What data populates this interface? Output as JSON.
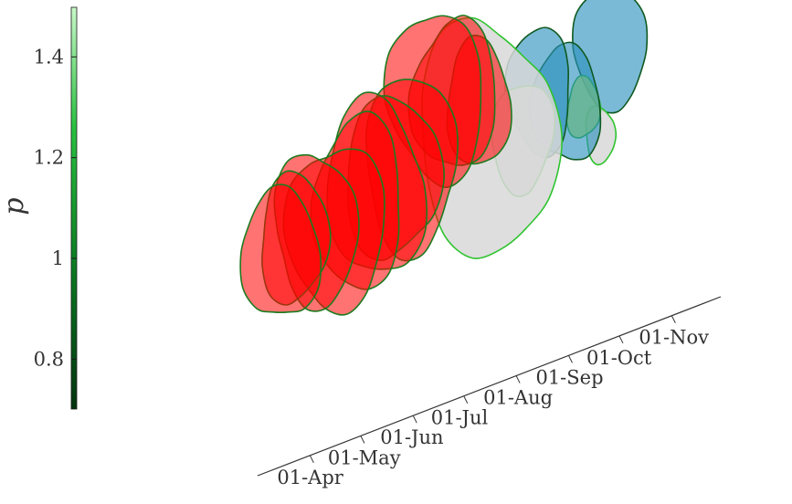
{
  "chart_data": {
    "type": "3d-contour-slices",
    "ylabel": "p",
    "y_ticks": [
      "0.8",
      "1",
      "1.2",
      "1.4"
    ],
    "y_tick_values": [
      0.8,
      1.0,
      1.2,
      1.4
    ],
    "ylim": [
      0.7,
      1.5
    ],
    "date_ticks": [
      "01-Apr",
      "01-May",
      "01-Jun",
      "01-Jul",
      "01-Aug",
      "01-Sep",
      "01-Oct",
      "01-Nov"
    ],
    "colorbar": {
      "colormap": "greens",
      "range": [
        0.7,
        1.5
      ]
    },
    "colors": {
      "red_slices": "#ff0000",
      "blue_slices": "#2a8fbd",
      "grey_slices": "#d8d8d8",
      "yellow_green": "#c8f040"
    },
    "slices": [
      {
        "date": "2020-03-20",
        "group": "red",
        "p_low": 0.87,
        "p_high": 1.14
      },
      {
        "date": "2020-03-28",
        "group": "red",
        "p_low": 0.91,
        "p_high": 1.16
      },
      {
        "date": "2020-04-10",
        "group": "red",
        "p_low": 0.9,
        "p_high": 1.2
      },
      {
        "date": "2020-04-22",
        "group": "red",
        "p_low": 0.88,
        "p_high": 1.22
      },
      {
        "date": "2020-05-05",
        "group": "red",
        "p_low": 0.93,
        "p_high": 1.26
      },
      {
        "date": "2020-05-15",
        "group": "red",
        "p_low": 0.95,
        "p_high": 1.3
      },
      {
        "date": "2020-05-25",
        "group": "red",
        "p_low": 0.98,
        "p_high": 1.31
      },
      {
        "date": "2020-06-05",
        "group": "red",
        "p_low": 1.0,
        "p_high": 1.34
      },
      {
        "date": "2020-06-20",
        "group": "red",
        "p_low": 1.13,
        "p_high": 1.47
      },
      {
        "date": "2020-07-01",
        "group": "red",
        "p_low": 1.15,
        "p_high": 1.45
      },
      {
        "date": "2020-07-15",
        "group": "red",
        "p_low": 1.16,
        "p_high": 1.4
      },
      {
        "date": "2020-07-20",
        "group": "grey",
        "p_low": 0.97,
        "p_high": 1.45
      },
      {
        "date": "2020-08-10",
        "group": "grey",
        "p_low": 1.1,
        "p_high": 1.32
      },
      {
        "date": "2020-08-20",
        "group": "blue",
        "p_low": 1.18,
        "p_high": 1.42
      },
      {
        "date": "2020-09-05",
        "group": "blue",
        "p_low": 1.15,
        "p_high": 1.39
      },
      {
        "date": "2020-09-15",
        "group": "yellow-green",
        "p_low": 1.2,
        "p_high": 1.32
      },
      {
        "date": "2020-09-25",
        "group": "grey",
        "p_low": 1.15,
        "p_high": 1.26
      },
      {
        "date": "2020-10-01",
        "group": "blue",
        "p_low": 1.25,
        "p_high": 1.5
      }
    ]
  }
}
